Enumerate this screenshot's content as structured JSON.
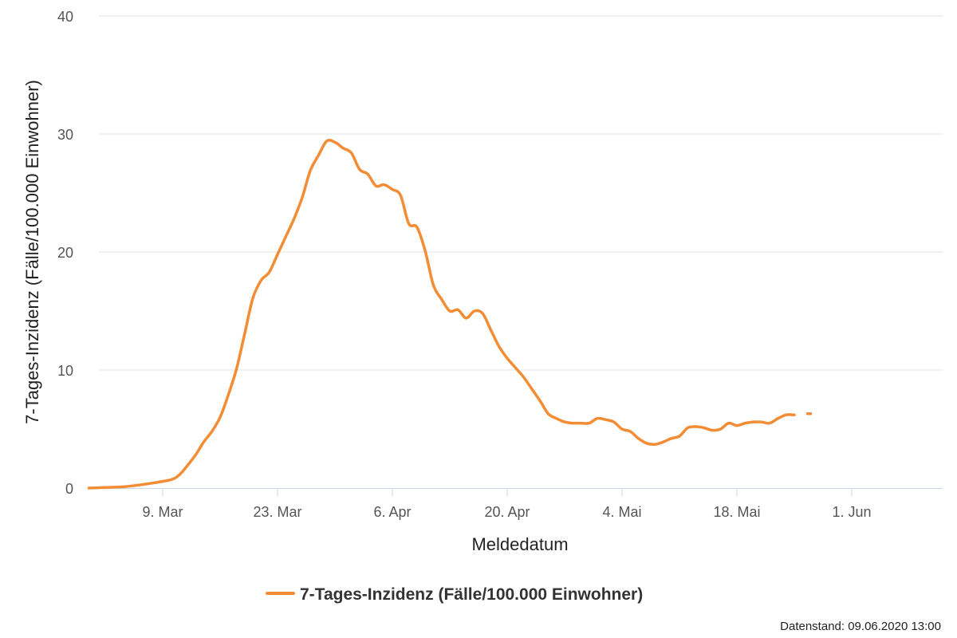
{
  "chart_data": {
    "type": "line",
    "title": "",
    "xlabel": "Meldedatum",
    "ylabel": "7-Tages-Inzidenz (Fälle/100.000 Einwohner)",
    "ylim": [
      0,
      40
    ],
    "yticks": [
      0,
      10,
      20,
      30,
      40
    ],
    "xlim": [
      0,
      102
    ],
    "x_ticks": [
      {
        "day": 7,
        "label": "9. Mar"
      },
      {
        "day": 21,
        "label": "23. Mar"
      },
      {
        "day": 35,
        "label": "6. Apr"
      },
      {
        "day": 49,
        "label": "20. Apr"
      },
      {
        "day": 63,
        "label": "4. Mai"
      },
      {
        "day": 77,
        "label": "18. Mai"
      },
      {
        "day": 91,
        "label": "1. Jun"
      }
    ],
    "grid": true,
    "legend_position": "bottom-center",
    "series": [
      {
        "name": "7-Tages-Inzidenz (Fälle/100.000 Einwohner)",
        "color": "#f28c35",
        "points": [
          [
            -2,
            0.0
          ],
          [
            0,
            0.05
          ],
          [
            2,
            0.1
          ],
          [
            4,
            0.25
          ],
          [
            6,
            0.45
          ],
          [
            8,
            0.7
          ],
          [
            9,
            1.1
          ],
          [
            10,
            1.9
          ],
          [
            11,
            2.8
          ],
          [
            12,
            3.9
          ],
          [
            13,
            4.8
          ],
          [
            14,
            6.0
          ],
          [
            15,
            7.9
          ],
          [
            16,
            10.1
          ],
          [
            17,
            13.1
          ],
          [
            18,
            16.1
          ],
          [
            19,
            17.6
          ],
          [
            20,
            18.3
          ],
          [
            21,
            19.8
          ],
          [
            22,
            21.3
          ],
          [
            23,
            22.8
          ],
          [
            24,
            24.6
          ],
          [
            25,
            26.9
          ],
          [
            26,
            28.2
          ],
          [
            27,
            29.4
          ],
          [
            28,
            29.3
          ],
          [
            29,
            28.8
          ],
          [
            30,
            28.4
          ],
          [
            31,
            27.0
          ],
          [
            32,
            26.6
          ],
          [
            33,
            25.6
          ],
          [
            34,
            25.7
          ],
          [
            35,
            25.3
          ],
          [
            36,
            24.8
          ],
          [
            37,
            22.4
          ],
          [
            38,
            22.1
          ],
          [
            39,
            20.1
          ],
          [
            40,
            17.2
          ],
          [
            41,
            16.0
          ],
          [
            42,
            15.0
          ],
          [
            43,
            15.1
          ],
          [
            44,
            14.4
          ],
          [
            45,
            15.0
          ],
          [
            46,
            14.8
          ],
          [
            47,
            13.4
          ],
          [
            48,
            12.0
          ],
          [
            49,
            11.0
          ],
          [
            50,
            10.2
          ],
          [
            51,
            9.4
          ],
          [
            52,
            8.4
          ],
          [
            53,
            7.4
          ],
          [
            54,
            6.3
          ],
          [
            55,
            5.9
          ],
          [
            56,
            5.6
          ],
          [
            57,
            5.5
          ],
          [
            58,
            5.5
          ],
          [
            59,
            5.5
          ],
          [
            60,
            5.9
          ],
          [
            61,
            5.8
          ],
          [
            62,
            5.6
          ],
          [
            63,
            5.0
          ],
          [
            64,
            4.8
          ],
          [
            65,
            4.2
          ],
          [
            66,
            3.8
          ],
          [
            67,
            3.7
          ],
          [
            68,
            3.9
          ],
          [
            69,
            4.2
          ],
          [
            70,
            4.4
          ],
          [
            71,
            5.1
          ],
          [
            72,
            5.2
          ],
          [
            73,
            5.1
          ],
          [
            74,
            4.9
          ],
          [
            75,
            5.0
          ],
          [
            76,
            5.5
          ],
          [
            77,
            5.3
          ],
          [
            78,
            5.5
          ],
          [
            79,
            5.6
          ],
          [
            80,
            5.6
          ],
          [
            81,
            5.5
          ],
          [
            82,
            5.9
          ],
          [
            83,
            6.2
          ],
          [
            84,
            6.2
          ]
        ],
        "extra_points": [
          [
            85.8,
            6.3
          ]
        ]
      }
    ]
  },
  "legend": {
    "label": "7-Tages-Inzidenz (Fälle/100.000 Einwohner)"
  },
  "footer": {
    "source": "Datenstand: 09.06.2020 13:00"
  }
}
